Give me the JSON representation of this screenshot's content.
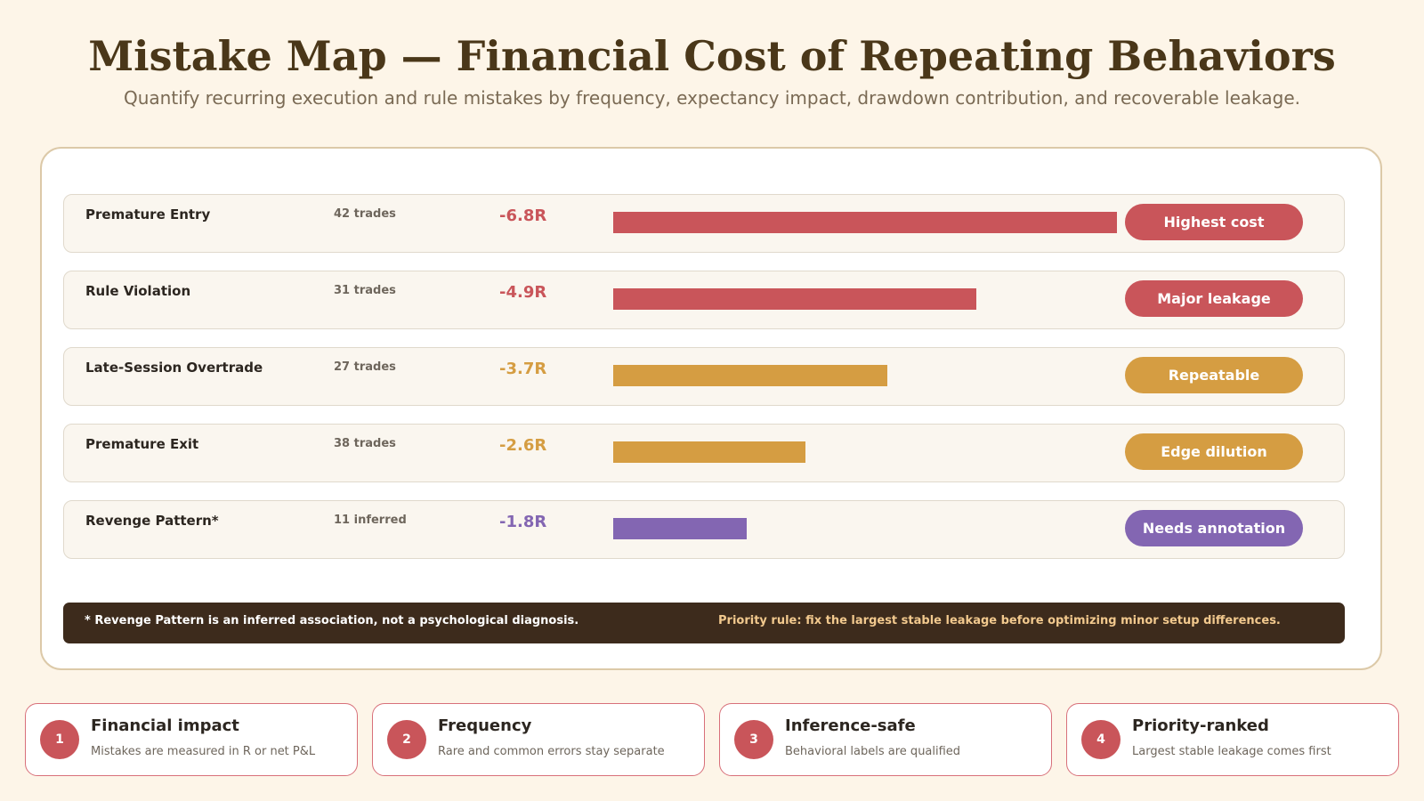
{
  "header": {
    "title": "Mistake Map — Financial Cost of Repeating Behaviors",
    "subtitle": "Quantify recurring execution and rule mistakes by frequency, expectancy impact, drawdown contribution, and recoverable leakage."
  },
  "colors": {
    "high": "#c9555a",
    "medium": "#d59d42",
    "inferred": "#8366b2"
  },
  "chart_data": {
    "type": "bar",
    "orientation": "horizontal",
    "rows": [
      {
        "label": "Premature Entry",
        "count": "42 trades",
        "value": -6.8,
        "value_label": "-6.8R",
        "badge": "Highest cost",
        "color": "#c9555a"
      },
      {
        "label": "Rule Violation",
        "count": "31 trades",
        "value": -4.9,
        "value_label": "-4.9R",
        "badge": "Major leakage",
        "color": "#c9555a"
      },
      {
        "label": "Late-Session Overtrade",
        "count": "27 trades",
        "value": -3.7,
        "value_label": "-3.7R",
        "badge": "Repeatable",
        "color": "#d59d42"
      },
      {
        "label": "Premature Exit",
        "count": "38 trades",
        "value": -2.6,
        "value_label": "-2.6R",
        "badge": "Edge dilution",
        "color": "#d59d42"
      },
      {
        "label": "Revenge Pattern*",
        "count": "11 inferred",
        "value": -1.8,
        "value_label": "-1.8R",
        "badge": "Needs annotation",
        "color": "#8366b2"
      }
    ]
  },
  "footer": {
    "note": "* Revenge Pattern is an inferred association, not a psychological diagnosis.",
    "priority": "Priority rule: fix the largest stable leakage before optimizing minor setup differences."
  },
  "cards": [
    {
      "number": "1",
      "title": "Financial impact",
      "desc": "Mistakes are measured in R or net P&L"
    },
    {
      "number": "2",
      "title": "Frequency",
      "desc": "Rare and common errors stay separate"
    },
    {
      "number": "3",
      "title": "Inference-safe",
      "desc": "Behavioral labels are qualified"
    },
    {
      "number": "4",
      "title": "Priority-ranked",
      "desc": "Largest stable leakage comes first"
    }
  ]
}
